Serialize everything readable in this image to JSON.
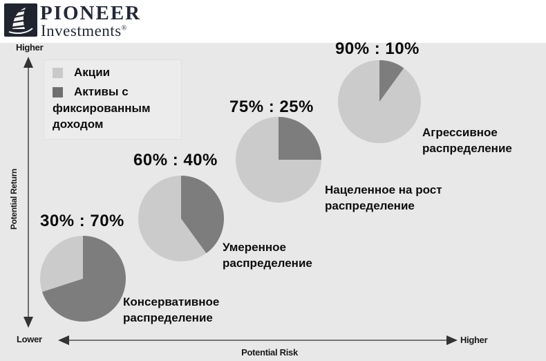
{
  "brand": {
    "name_line1": "PIONEER",
    "name_line2": "Investments",
    "registered_mark": "®",
    "logo": "pioneer-sail-logo"
  },
  "colors": {
    "equities": "#cbcbcb",
    "fixed_income": "#7d7d7d",
    "legend_equities_swatch": "#c9c9c9",
    "legend_fixed_income_swatch": "#6f6f6f",
    "chart_background": "#e8e8e8",
    "axis": "#4e4e4e",
    "logo_navy": "#20242e",
    "text": "#0d0d0d"
  },
  "legend": {
    "item_equities_label": "Акции",
    "item_fixed_line1": "Активы с",
    "item_fixed_line2": "фиксированным",
    "item_fixed_line3": "доходом"
  },
  "axes": {
    "y_title": "Potential Return",
    "y_top_label": "Higher",
    "corner_lower_label": "Lower",
    "x_right_label": "Higher",
    "x_title": "Potential Risk"
  },
  "chart_data": {
    "type": "pie",
    "title": "",
    "series_labels": [
      "Акции",
      "Активы с фиксированным доходом"
    ],
    "legend_position": "top-left",
    "layout": "four pies ascending from lower-left (low risk, low return) to upper-right (high risk, high return)",
    "pies": [
      {
        "ratio_label": "30% : 70%",
        "equities_pct": 30,
        "fixed_income_pct": 70,
        "name_lines": [
          "Консервативное",
          "распределение"
        ]
      },
      {
        "ratio_label": "60% : 40%",
        "equities_pct": 60,
        "fixed_income_pct": 40,
        "name_lines": [
          "Умеренное",
          "распределение"
        ]
      },
      {
        "ratio_label": "75% : 25%",
        "equities_pct": 75,
        "fixed_income_pct": 25,
        "name_lines": [
          "Нацеленное на рост",
          "распределение"
        ]
      },
      {
        "ratio_label": "90% : 10%",
        "equities_pct": 90,
        "fixed_income_pct": 10,
        "name_lines": [
          "Агрессивное",
          "распределение"
        ]
      }
    ]
  }
}
